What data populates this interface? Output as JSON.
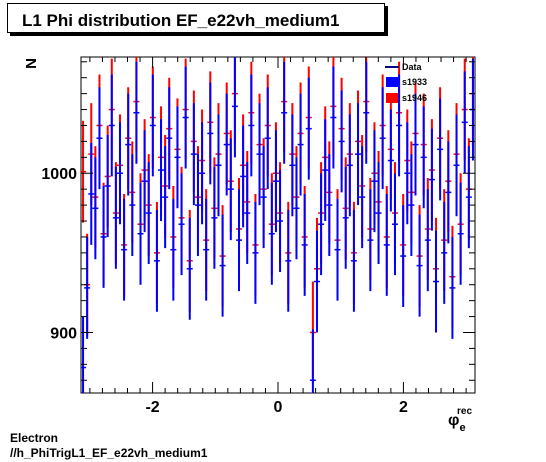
{
  "chart_data": {
    "type": "scatter",
    "title": "L1 Phi distribution EF_e22vh_medium1",
    "ylabel": "N",
    "xlabel_main": "φ",
    "xlabel_sup": "rec",
    "xlabel_sub": "e",
    "xlim": [
      -3.1416,
      3.1416
    ],
    "ylim": [
      862,
      1073
    ],
    "x_ticks": [
      -2,
      0,
      2
    ],
    "x_tick_labels": [
      "-2",
      "0",
      "2"
    ],
    "y_ticks": [
      900,
      1000
    ],
    "y_tick_labels": [
      "900",
      "1000"
    ],
    "grid": false,
    "legend_position": "top-right",
    "legend": [
      {
        "label": "Data",
        "marker": "line",
        "color": "#000080"
      },
      {
        "label": "s1933",
        "marker": "box",
        "color": "#0000ff"
      },
      {
        "label": "s1946",
        "marker": "box",
        "color": "#ff0000"
      }
    ],
    "series": [
      {
        "name": "s1946",
        "color": "#ff0000",
        "error": 32,
        "values": [
          1001,
          930,
          1012,
          985,
          1030,
          962,
          998,
          1040,
          975,
          1005,
          955,
          1022,
          988,
          1045,
          968,
          1002,
          980,
          1035,
          950,
          1010,
          992,
          1028,
          960,
          1015,
          972,
          1040,
          945,
          1020,
          985,
          1008,
          958,
          1032,
          978,
          1012,
          948,
          1025,
          995,
          1050,
          965,
          1005,
          982,
          1038,
          955,
          1018,
          990,
          1030,
          968,
          1000,
          975,
          1045,
          950,
          1012,
          985,
          1025,
          960,
          1035,
          900,
          940,
          975,
          1010,
          988,
          1042,
          958,
          1028,
          978,
          1012,
          950,
          1020,
          992,
          1045,
          965,
          1000,
          982,
          1030,
          960,
          1015,
          975,
          1038,
          955,
          1008,
          988,
          1025,
          948,
          1018,
          965,
          1002,
          940,
          1022,
          958,
          995,
          935,
          1012,
          968,
          1040,
          990,
          1050
        ]
      },
      {
        "name": "s1933",
        "color": "#0000ff",
        "error": 32,
        "values": [
          878,
          928,
          987,
          978,
          1022,
          960,
          992,
          1030,
          972,
          1000,
          952,
          1018,
          980,
          1038,
          962,
          995,
          975,
          1030,
          945,
          1002,
          985,
          1022,
          952,
          1010,
          968,
          1035,
          940,
          1012,
          980,
          1000,
          952,
          1025,
          972,
          1005,
          942,
          1018,
          990,
          1042,
          958,
          998,
          975,
          1030,
          950,
          1012,
          985,
          1022,
          962,
          995,
          970,
          1038,
          945,
          1005,
          978,
          1018,
          955,
          1028,
          870,
          932,
          968,
          1002,
          980,
          1035,
          952,
          1020,
          972,
          1005,
          945,
          1012,
          985,
          1038,
          958,
          995,
          975,
          1022,
          955,
          1008,
          968,
          1030,
          948,
          1000,
          980,
          1018,
          942,
          1010,
          958,
          996,
          932,
          1015,
          950,
          988,
          928,
          1005,
          962,
          1032,
          985,
          1040
        ]
      }
    ],
    "footer_label": "Electron",
    "footer_histogram": "//h_PhiTrigL1_EF_e22vh_medium1"
  }
}
